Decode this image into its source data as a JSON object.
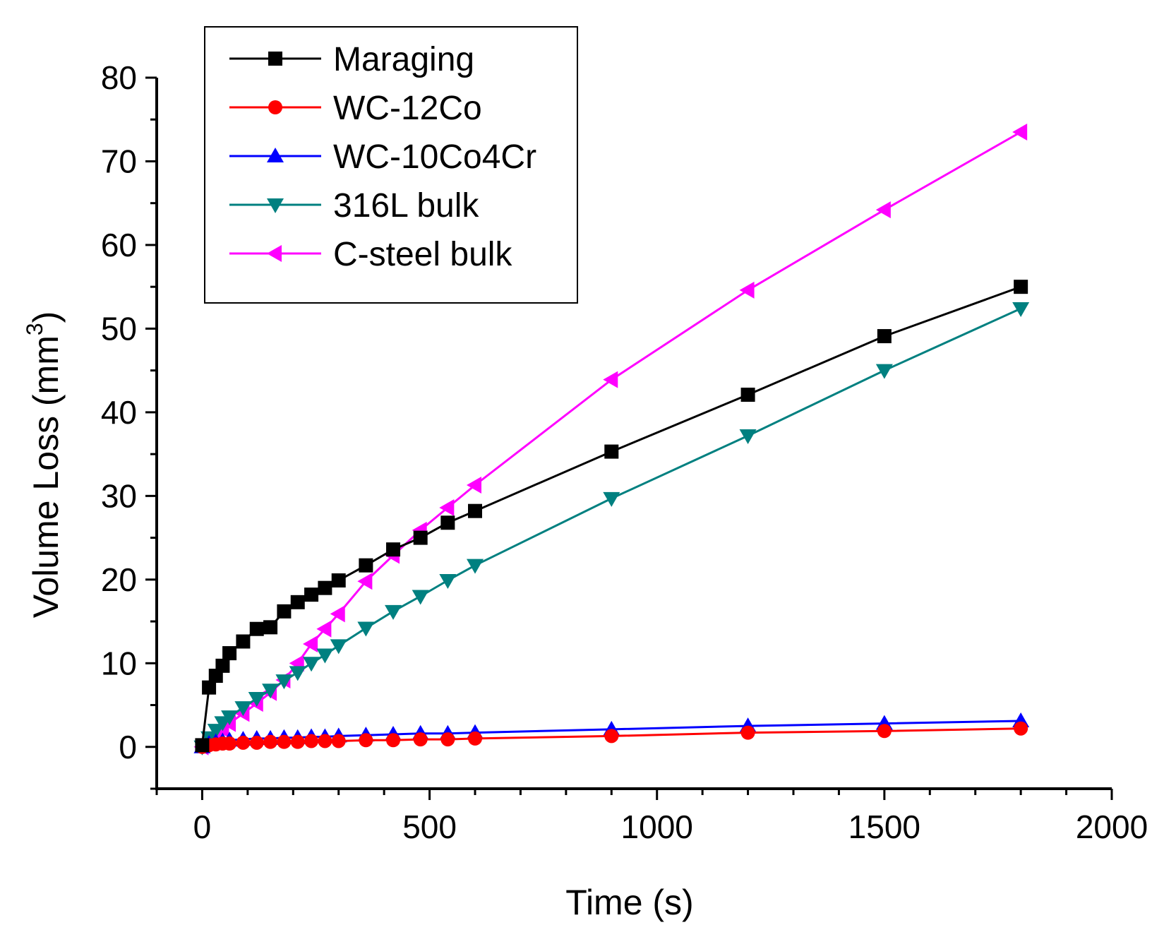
{
  "chart_data": {
    "type": "line",
    "title": "",
    "xlabel": "Time (s)",
    "ylabel": "Volume Loss (mm",
    "ylabel_superscript": "3",
    "ylabel_suffix": ")",
    "xlim": [
      -100,
      2000
    ],
    "ylim": [
      -5,
      80
    ],
    "x_ticks": [
      0,
      500,
      1000,
      1500,
      2000
    ],
    "x_tick_labels": [
      "0",
      "500",
      "1000",
      "1500",
      "2000"
    ],
    "y_ticks": [
      0,
      10,
      20,
      30,
      40,
      50,
      60,
      70,
      80
    ],
    "y_tick_labels": [
      "0",
      "10",
      "20",
      "30",
      "40",
      "50",
      "60",
      "70",
      "80"
    ],
    "grid": false,
    "legend_position": "top-left",
    "series": [
      {
        "name": "Maraging",
        "color": "#000000",
        "marker": "square",
        "x": [
          0,
          15,
          30,
          45,
          60,
          90,
          120,
          150,
          180,
          210,
          240,
          270,
          300,
          360,
          420,
          480,
          540,
          600,
          900,
          1200,
          1500,
          1800
        ],
        "values": [
          0.2,
          7.1,
          8.5,
          9.7,
          11.2,
          12.6,
          14.1,
          14.3,
          16.2,
          17.3,
          18.2,
          19.0,
          19.9,
          21.7,
          23.6,
          25.0,
          26.8,
          28.2,
          35.3,
          42.1,
          49.1,
          55.0
        ]
      },
      {
        "name": "WC-12Co",
        "color": "#ff0000",
        "marker": "circle",
        "x": [
          0,
          15,
          30,
          45,
          60,
          90,
          120,
          150,
          180,
          210,
          240,
          270,
          300,
          360,
          420,
          480,
          540,
          600,
          900,
          1200,
          1500,
          1800
        ],
        "values": [
          0,
          0.2,
          0.3,
          0.4,
          0.4,
          0.5,
          0.5,
          0.6,
          0.6,
          0.6,
          0.7,
          0.7,
          0.7,
          0.8,
          0.8,
          0.9,
          0.9,
          1.0,
          1.3,
          1.7,
          1.9,
          2.2
        ]
      },
      {
        "name": "WC-10Co4Cr",
        "color": "#0000ff",
        "marker": "triangle-up",
        "x": [
          0,
          15,
          30,
          45,
          60,
          90,
          120,
          150,
          180,
          210,
          240,
          270,
          300,
          360,
          420,
          480,
          540,
          600,
          900,
          1200,
          1500,
          1800
        ],
        "values": [
          0,
          0.4,
          0.6,
          0.7,
          0.8,
          0.9,
          1.0,
          1.0,
          1.1,
          1.1,
          1.2,
          1.2,
          1.3,
          1.4,
          1.5,
          1.6,
          1.6,
          1.7,
          2.1,
          2.5,
          2.8,
          3.1
        ]
      },
      {
        "name": "316L bulk",
        "color": "#008080",
        "marker": "triangle-down",
        "x": [
          0,
          15,
          30,
          45,
          60,
          90,
          120,
          150,
          180,
          210,
          240,
          270,
          300,
          360,
          420,
          480,
          540,
          600,
          900,
          1200,
          1500,
          1800
        ],
        "values": [
          0,
          1.1,
          2.0,
          2.9,
          3.6,
          4.7,
          5.8,
          6.8,
          7.9,
          8.9,
          10.0,
          11.0,
          12.1,
          14.2,
          16.2,
          18.0,
          19.9,
          21.7,
          29.7,
          37.2,
          45.0,
          52.4
        ]
      },
      {
        "name": "C-steel bulk",
        "color": "#ff00ff",
        "marker": "triangle-left",
        "x": [
          0,
          15,
          30,
          45,
          60,
          90,
          120,
          150,
          180,
          210,
          240,
          270,
          300,
          360,
          420,
          480,
          540,
          600,
          900,
          1200,
          1500,
          1800
        ],
        "values": [
          0,
          0.8,
          1.5,
          2.1,
          2.8,
          4.0,
          5.2,
          6.5,
          8.0,
          10.0,
          12.3,
          14.1,
          15.9,
          19.8,
          22.9,
          25.9,
          28.6,
          31.3,
          43.9,
          54.6,
          64.2,
          73.5
        ]
      }
    ]
  }
}
